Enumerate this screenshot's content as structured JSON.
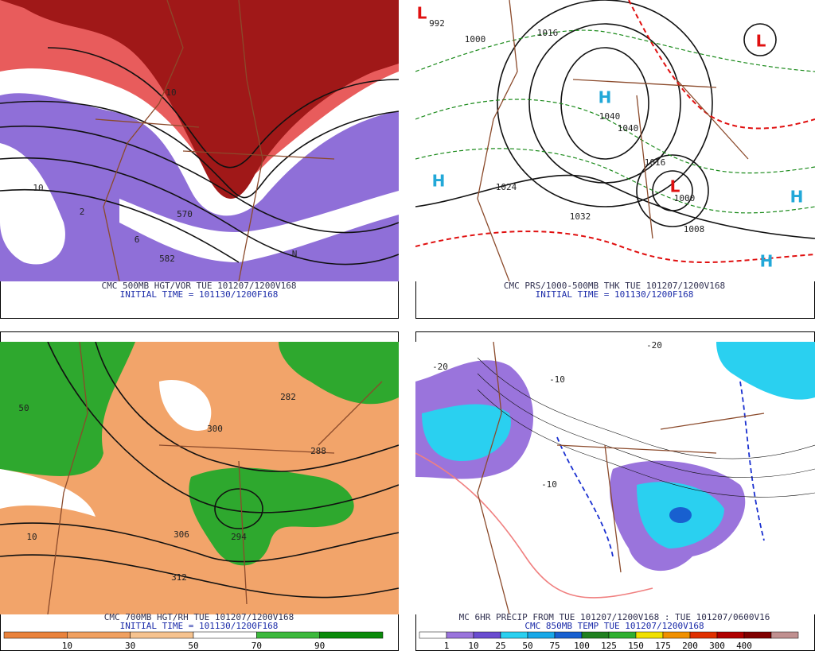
{
  "panels": [
    {
      "captions": [
        "CMC 500MB HGT/VOR TUE 101207/1200V168",
        "INITIAL TIME = 101130/1200F168"
      ],
      "labels": [
        "570",
        "582",
        "10",
        "10",
        "N",
        "2",
        "6"
      ]
    },
    {
      "captions": [
        "CMC PRS/1000-500MB THK TUE 101207/1200V168",
        "INITIAL TIME = 101130/1200F168"
      ],
      "labels": [
        "1000",
        "1016",
        "1040",
        "1040",
        "1032",
        "1008",
        "1024",
        "1016",
        "1000",
        "992",
        "H",
        "H",
        "H",
        "H",
        "L",
        "L",
        "L"
      ]
    },
    {
      "captions": [
        "CMC 700MB HGT/RH TUE 101207/1200V168",
        "INITIAL TIME = 101130/1200F168"
      ],
      "labels": [
        "300",
        "306",
        "312",
        "288",
        "294",
        "282",
        "50",
        "10"
      ],
      "colorbar": [
        "10",
        "30",
        "50",
        "70",
        "90"
      ]
    },
    {
      "captions": [
        "MC 6HR PRECIP FROM TUE 101207/1200V168 : TUE 101207/0600V16",
        "CMC 850MB TEMP TUE 101207/1200V168"
      ],
      "labels": [
        "-20",
        "-10",
        "-10",
        "-20"
      ],
      "colorbar": [
        "1",
        "10",
        "25",
        "50",
        "75",
        "100",
        "125",
        "150",
        "175",
        "200",
        "300",
        "400"
      ]
    }
  ]
}
